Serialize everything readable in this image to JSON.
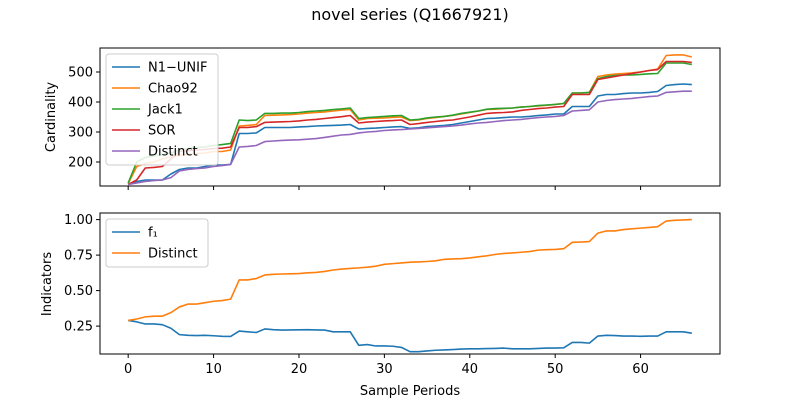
{
  "figure_title": "novel series (Q1667921)",
  "chart_data": [
    {
      "type": "line",
      "ylabel": "Cardinality",
      "xlabel": "",
      "xlim": [
        -3.3,
        69.3
      ],
      "ylim": [
        120,
        580
      ],
      "xticks": [
        0,
        10,
        20,
        30,
        40,
        50,
        60
      ],
      "xtick_labels_visible": false,
      "yticks": [
        200,
        300,
        400,
        500
      ],
      "legend_position": "upper-left",
      "grid": false,
      "x": [
        0,
        1,
        2,
        3,
        4,
        5,
        6,
        7,
        8,
        9,
        10,
        11,
        12,
        13,
        14,
        15,
        16,
        17,
        18,
        19,
        20,
        21,
        22,
        23,
        24,
        25,
        26,
        27,
        28,
        29,
        30,
        31,
        32,
        33,
        34,
        35,
        36,
        37,
        38,
        39,
        40,
        41,
        42,
        43,
        44,
        45,
        46,
        47,
        48,
        49,
        50,
        51,
        52,
        53,
        54,
        55,
        56,
        57,
        58,
        59,
        60,
        61,
        62,
        63,
        64,
        65,
        66
      ],
      "series": [
        {
          "name": "N1−UNIF",
          "color": "#1f77b4",
          "values": [
            125,
            135,
            140,
            140,
            140,
            160,
            175,
            180,
            180,
            185,
            190,
            190,
            192,
            295,
            295,
            297,
            315,
            315,
            315,
            315,
            317,
            318,
            320,
            321,
            322,
            323,
            325,
            310,
            312,
            313,
            315,
            317,
            318,
            312,
            314,
            318,
            320,
            322,
            325,
            330,
            335,
            340,
            345,
            346,
            348,
            350,
            350,
            352,
            355,
            357,
            360,
            360,
            385,
            385,
            385,
            420,
            425,
            425,
            428,
            430,
            430,
            432,
            435,
            455,
            458,
            460,
            458
          ]
        },
        {
          "name": "Chao92",
          "color": "#ff7f0e",
          "values": [
            128,
            185,
            195,
            200,
            210,
            218,
            222,
            225,
            228,
            230,
            235,
            235,
            240,
            320,
            322,
            325,
            355,
            356,
            357,
            358,
            360,
            363,
            365,
            367,
            370,
            373,
            375,
            340,
            345,
            346,
            347,
            349,
            350,
            338,
            340,
            345,
            348,
            352,
            355,
            360,
            365,
            370,
            375,
            376,
            378,
            380,
            383,
            385,
            387,
            389,
            392,
            395,
            430,
            430,
            432,
            485,
            490,
            493,
            495,
            497,
            500,
            505,
            510,
            555,
            557,
            557,
            550
          ]
        },
        {
          "name": "Jack1",
          "color": "#2ca02c",
          "values": [
            130,
            200,
            215,
            220,
            225,
            230,
            240,
            245,
            248,
            250,
            255,
            258,
            262,
            340,
            338,
            340,
            362,
            362,
            363,
            363,
            365,
            368,
            370,
            372,
            375,
            377,
            380,
            345,
            348,
            350,
            352,
            354,
            355,
            340,
            342,
            347,
            350,
            352,
            356,
            362,
            366,
            370,
            376,
            378,
            379,
            380,
            383,
            385,
            388,
            390,
            392,
            395,
            430,
            430,
            432,
            478,
            485,
            488,
            490,
            490,
            492,
            494,
            495,
            530,
            530,
            530,
            525
          ]
        },
        {
          "name": "SOR",
          "color": "#d62728",
          "values": [
            125,
            140,
            180,
            182,
            185,
            210,
            235,
            238,
            240,
            242,
            245,
            246,
            250,
            315,
            315,
            318,
            332,
            333,
            334,
            335,
            337,
            340,
            342,
            345,
            348,
            351,
            355,
            330,
            333,
            335,
            337,
            338,
            340,
            325,
            328,
            332,
            335,
            338,
            340,
            345,
            350,
            356,
            362,
            364,
            365,
            367,
            372,
            375,
            378,
            380,
            383,
            385,
            425,
            425,
            425,
            475,
            480,
            485,
            490,
            495,
            500,
            505,
            508,
            535,
            535,
            535,
            532
          ]
        },
        {
          "name": "Distinct",
          "color": "#9467bd",
          "values": [
            125,
            130,
            135,
            138,
            140,
            148,
            170,
            175,
            178,
            180,
            185,
            188,
            192,
            250,
            252,
            255,
            268,
            270,
            272,
            273,
            274,
            276,
            278,
            282,
            286,
            290,
            292,
            297,
            300,
            302,
            305,
            307,
            308,
            310,
            312,
            314,
            316,
            318,
            320,
            323,
            327,
            330,
            332,
            335,
            338,
            340,
            342,
            345,
            348,
            350,
            352,
            355,
            370,
            372,
            374,
            400,
            405,
            408,
            410,
            412,
            415,
            418,
            420,
            432,
            434,
            436,
            436
          ]
        }
      ]
    },
    {
      "type": "line",
      "ylabel": "Indicators",
      "xlabel": "Sample Periods",
      "xlim": [
        -3.3,
        69.3
      ],
      "ylim": [
        0.0535,
        1.0465
      ],
      "xticks": [
        0,
        10,
        20,
        30,
        40,
        50,
        60
      ],
      "yticks": [
        0.25,
        0.5,
        0.75,
        1.0
      ],
      "ytick_labels": [
        "0.25",
        "0.50",
        "0.75",
        "1.00"
      ],
      "legend_position": "upper-left",
      "grid": false,
      "x": [
        0,
        1,
        2,
        3,
        4,
        5,
        6,
        7,
        8,
        9,
        10,
        11,
        12,
        13,
        14,
        15,
        16,
        17,
        18,
        19,
        20,
        21,
        22,
        23,
        24,
        25,
        26,
        27,
        28,
        29,
        30,
        31,
        32,
        33,
        34,
        35,
        36,
        37,
        38,
        39,
        40,
        41,
        42,
        43,
        44,
        45,
        46,
        47,
        48,
        49,
        50,
        51,
        52,
        53,
        54,
        55,
        56,
        57,
        58,
        59,
        60,
        61,
        62,
        63,
        64,
        65,
        66
      ],
      "series": [
        {
          "name": "f₁",
          "color": "#1f77b4",
          "values": [
            0.29,
            0.28,
            0.265,
            0.265,
            0.26,
            0.235,
            0.19,
            0.185,
            0.183,
            0.185,
            0.182,
            0.178,
            0.177,
            0.215,
            0.21,
            0.205,
            0.23,
            0.225,
            0.222,
            0.223,
            0.224,
            0.225,
            0.223,
            0.222,
            0.21,
            0.21,
            0.21,
            0.115,
            0.12,
            0.11,
            0.11,
            0.108,
            0.1,
            0.07,
            0.07,
            0.075,
            0.08,
            0.082,
            0.085,
            0.088,
            0.09,
            0.09,
            0.092,
            0.093,
            0.095,
            0.09,
            0.09,
            0.09,
            0.093,
            0.095,
            0.095,
            0.097,
            0.135,
            0.135,
            0.13,
            0.18,
            0.185,
            0.183,
            0.18,
            0.18,
            0.178,
            0.18,
            0.18,
            0.21,
            0.21,
            0.21,
            0.2
          ]
        },
        {
          "name": "Distinct",
          "color": "#ff7f0e",
          "values": [
            0.29,
            0.3,
            0.315,
            0.32,
            0.32,
            0.345,
            0.385,
            0.405,
            0.405,
            0.415,
            0.425,
            0.43,
            0.44,
            0.575,
            0.575,
            0.585,
            0.61,
            0.615,
            0.617,
            0.618,
            0.62,
            0.625,
            0.628,
            0.635,
            0.645,
            0.652,
            0.656,
            0.66,
            0.665,
            0.672,
            0.685,
            0.69,
            0.695,
            0.7,
            0.702,
            0.705,
            0.71,
            0.72,
            0.723,
            0.725,
            0.73,
            0.738,
            0.745,
            0.755,
            0.762,
            0.765,
            0.77,
            0.775,
            0.785,
            0.788,
            0.79,
            0.795,
            0.84,
            0.842,
            0.845,
            0.905,
            0.92,
            0.92,
            0.93,
            0.935,
            0.94,
            0.945,
            0.95,
            0.99,
            0.995,
            0.998,
            1.0
          ]
        }
      ]
    }
  ]
}
